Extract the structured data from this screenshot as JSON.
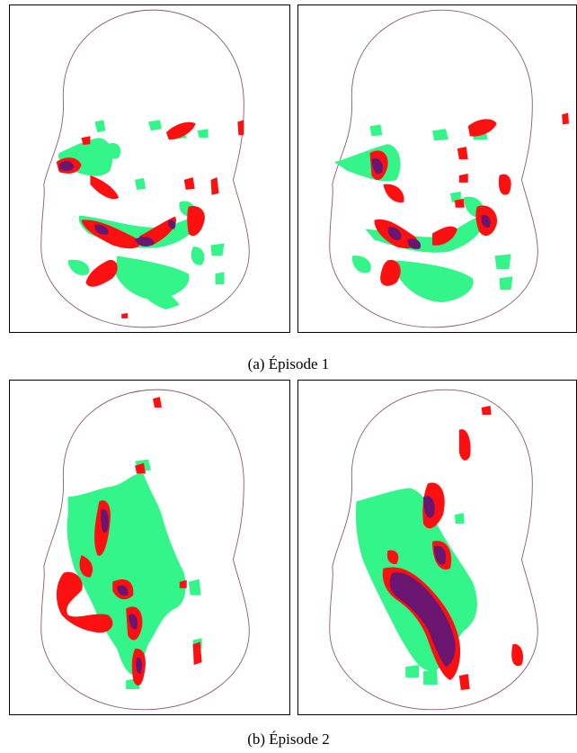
{
  "figures": [
    {
      "caption": "(a) Épisode 1"
    },
    {
      "caption": "(b) Épisode 2"
    }
  ],
  "colors": {
    "region_a": "#33f58a",
    "region_b": "#ff1010",
    "overlap": "#6a1670",
    "outline": "#8a5a6a",
    "frame": "#000000"
  }
}
